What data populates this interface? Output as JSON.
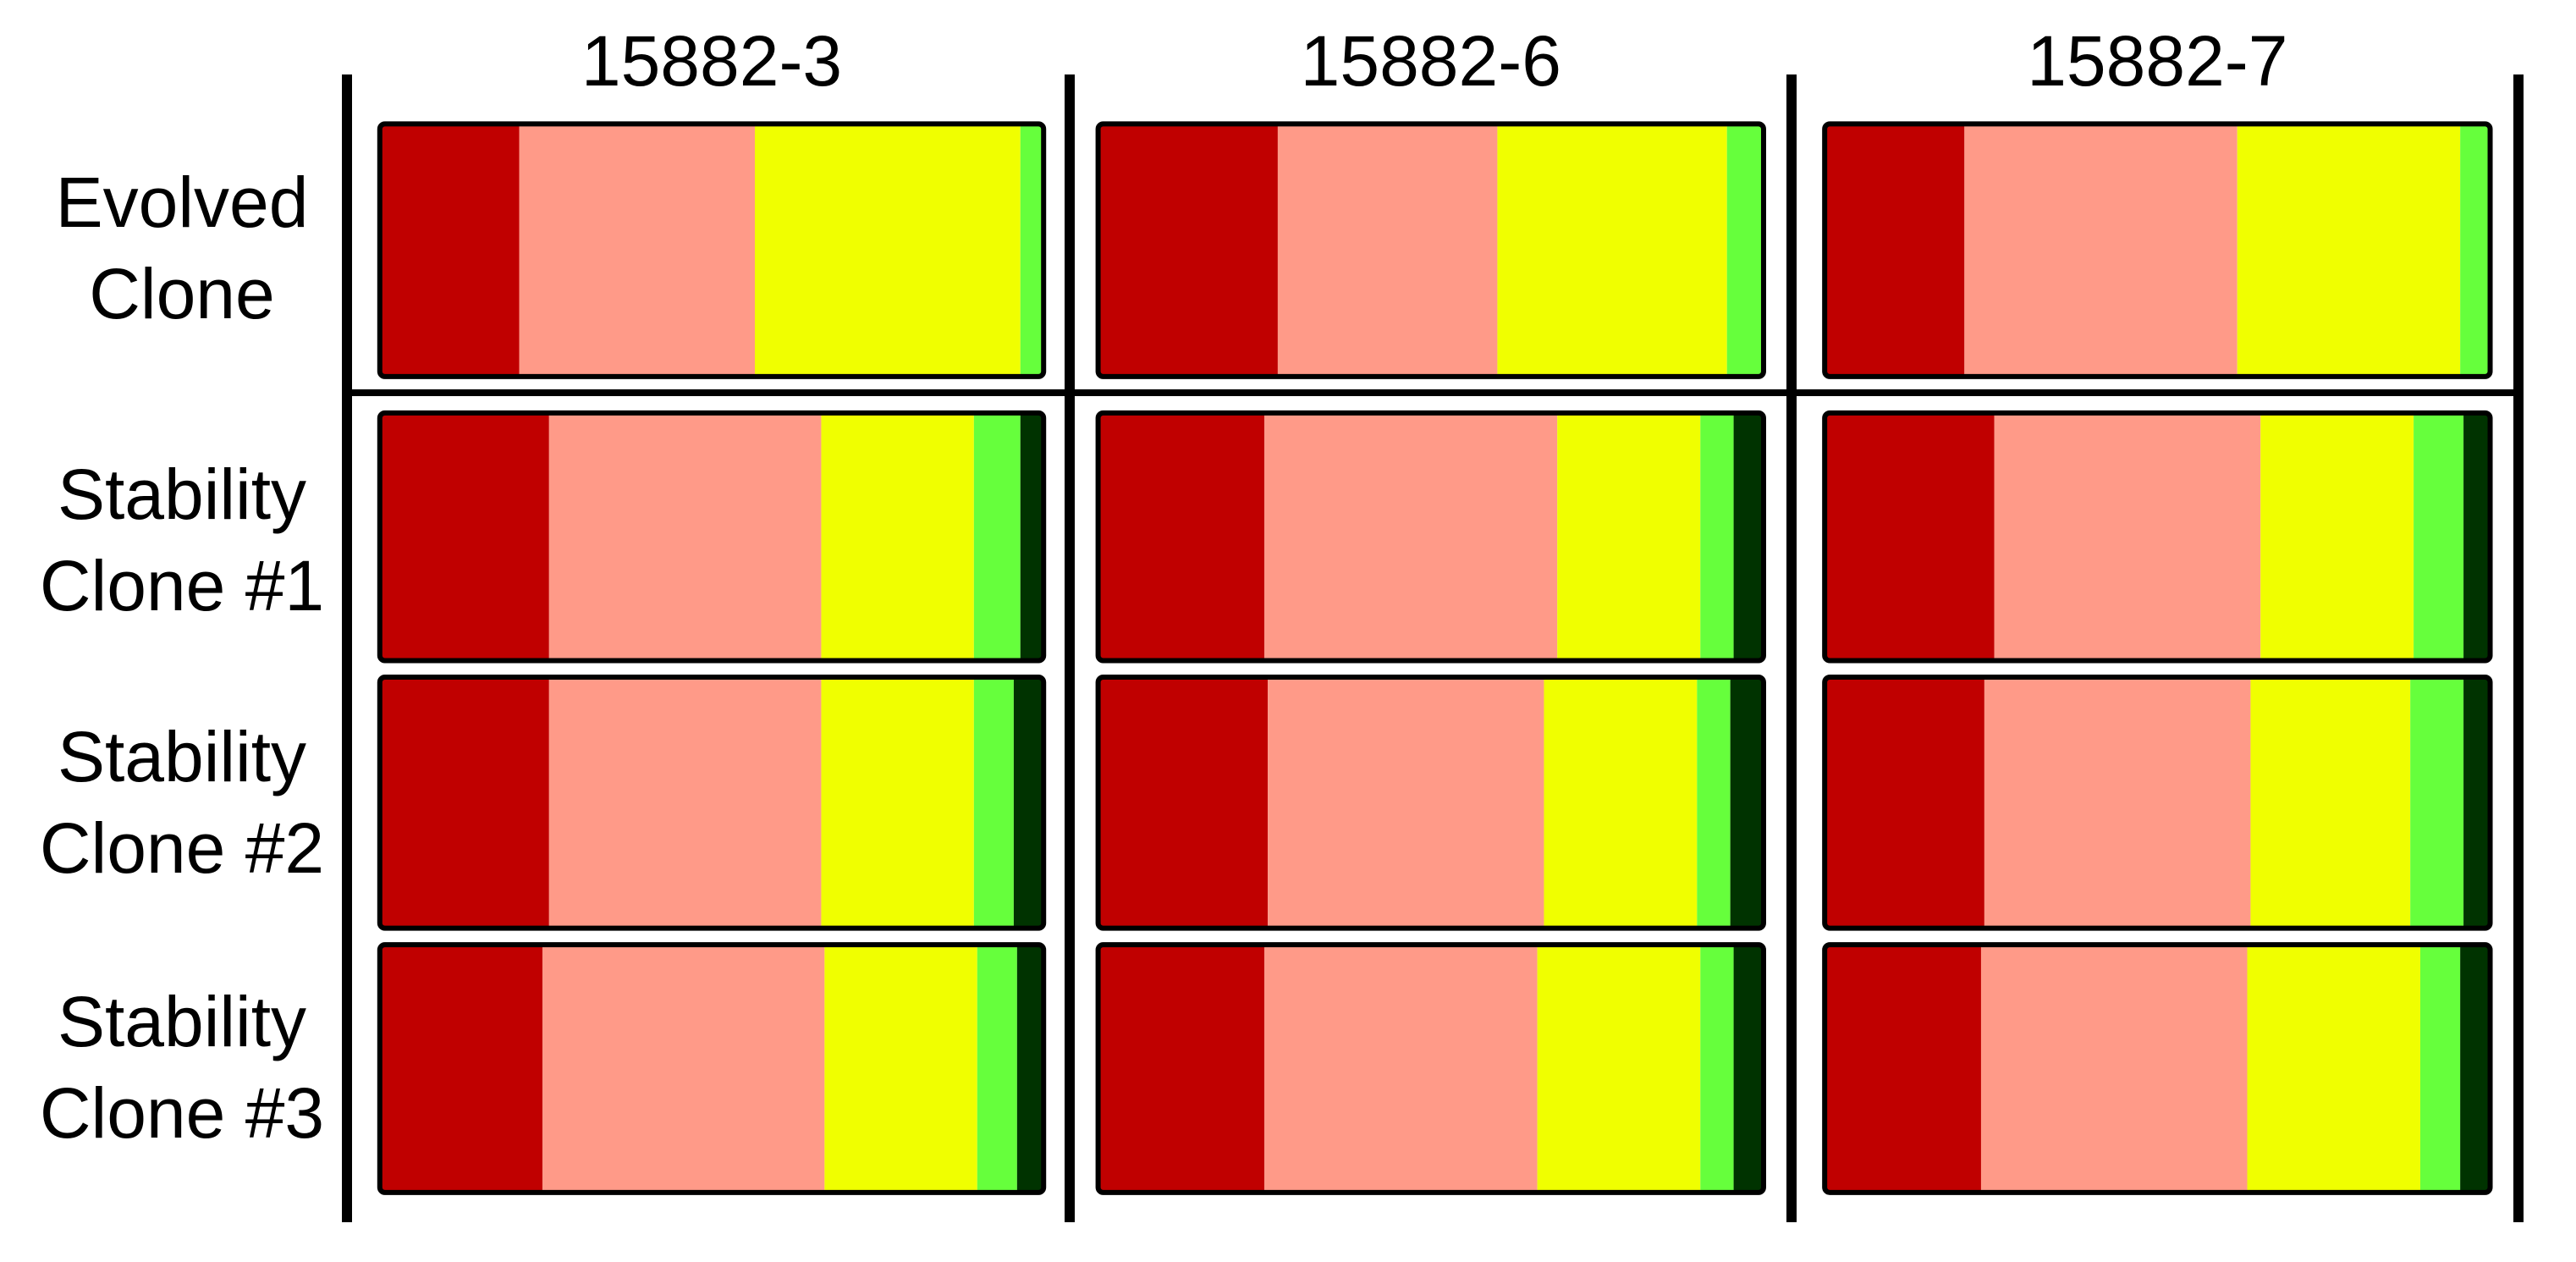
{
  "chart_data": {
    "type": "stacked-bar-grid",
    "columns": [
      "15882-3",
      "15882-6",
      "15882-7"
    ],
    "categories": [
      "Evolved Clone",
      "Stability Clone #1",
      "Stability Clone #2",
      "Stability Clone #3"
    ],
    "series": [
      {
        "color": "#c00000",
        "values": [
          [
            21,
            25.5,
            25.5,
            24.5
          ],
          [
            27,
            25,
            25.5,
            25
          ],
          [
            21,
            25.5,
            24,
            23.5
          ]
        ]
      },
      {
        "color": "#ff9a88",
        "values": [
          [
            35.5,
            41,
            41,
            42.5
          ],
          [
            33,
            44,
            41.5,
            41
          ],
          [
            41,
            40,
            40,
            40
          ]
        ]
      },
      {
        "color": "#f0ff00",
        "values": [
          [
            40,
            23,
            23,
            23
          ],
          [
            34.5,
            21.5,
            23,
            24.5
          ],
          [
            33.5,
            23,
            24,
            26
          ]
        ]
      },
      {
        "color": "#66ff3c",
        "values": [
          [
            3.5,
            7,
            6,
            6
          ],
          [
            5.5,
            5,
            5,
            5
          ],
          [
            4.5,
            7.5,
            8,
            6
          ]
        ]
      },
      {
        "color": "#003300",
        "values": [
          [
            0,
            3.5,
            4.5,
            4
          ],
          [
            0,
            4.5,
            5,
            4.5
          ],
          [
            0,
            4,
            4,
            4.5
          ]
        ]
      }
    ]
  }
}
